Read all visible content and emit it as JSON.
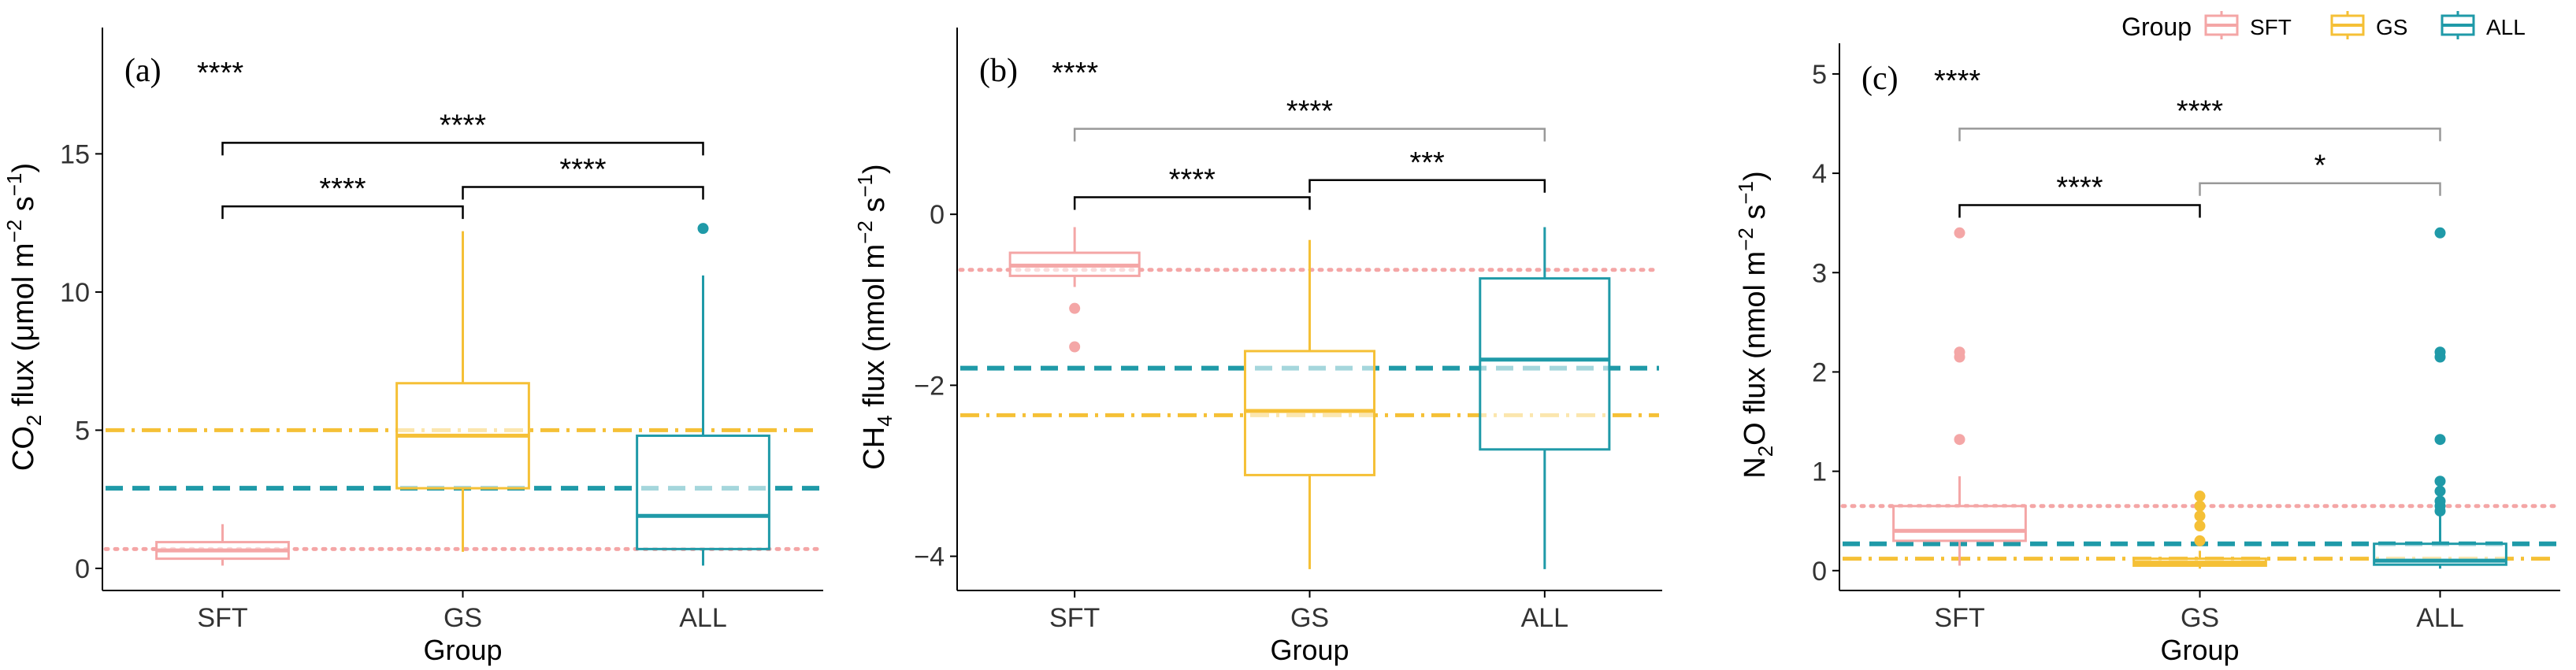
{
  "legend": {
    "title": "Group",
    "items": [
      {
        "label": "SFT",
        "color": "#F4A6A6"
      },
      {
        "label": "GS",
        "color": "#F5C036"
      },
      {
        "label": "ALL",
        "color": "#1F9AA8"
      }
    ]
  },
  "chart_data": [
    {
      "type": "box",
      "panel_label": "(a)",
      "overall_sig": "****",
      "title": "",
      "xlabel": "Group",
      "ylabel_parts": [
        "CO",
        "2",
        " flux (μmol m",
        "−2",
        " s",
        "−1",
        ")"
      ],
      "ylim": [
        -0.8,
        19
      ],
      "yticks": [
        0,
        5,
        10,
        15
      ],
      "categories": [
        "SFT",
        "GS",
        "ALL"
      ],
      "boxes": [
        {
          "group": "SFT",
          "min": 0.1,
          "q1": 0.35,
          "median": 0.65,
          "q3": 0.95,
          "max": 1.6,
          "mean": 0.65,
          "outliers": []
        },
        {
          "group": "GS",
          "min": 0.6,
          "q1": 2.9,
          "median": 4.8,
          "q3": 6.7,
          "max": 12.2,
          "mean": 4.85,
          "outliers": []
        },
        {
          "group": "ALL",
          "min": 0.1,
          "q1": 0.7,
          "median": 1.9,
          "q3": 4.8,
          "max": 10.6,
          "mean": 2.9,
          "outliers": [
            12.3
          ]
        }
      ],
      "reference_lines": [
        {
          "group": "SFT",
          "value": 0.7,
          "style": "dotted"
        },
        {
          "group": "GS",
          "value": 5.0,
          "style": "dashdot"
        },
        {
          "group": "ALL",
          "value": 2.9,
          "style": "dashed"
        }
      ],
      "comparisons": [
        {
          "from": "SFT",
          "to": "GS",
          "label": "****",
          "y": 13.1,
          "color": "#000000"
        },
        {
          "from": "GS",
          "to": "ALL",
          "label": "****",
          "y": 13.8,
          "color": "#000000"
        },
        {
          "from": "SFT",
          "to": "ALL",
          "label": "****",
          "y": 15.4,
          "color": "#000000"
        }
      ]
    },
    {
      "type": "box",
      "panel_label": "(b)",
      "overall_sig": "****",
      "title": "",
      "xlabel": "Group",
      "ylabel_parts": [
        "CH",
        "4",
        " flux (nmol m",
        "−2",
        " s",
        "−1",
        ")"
      ],
      "ylim": [
        -4.4,
        2.0
      ],
      "yticks": [
        -4,
        -2,
        0
      ],
      "categories": [
        "SFT",
        "GS",
        "ALL"
      ],
      "boxes": [
        {
          "group": "SFT",
          "min": -0.85,
          "q1": -0.72,
          "median": -0.6,
          "q3": -0.45,
          "max": -0.15,
          "mean": -0.6,
          "outliers": [
            -1.1,
            -1.55
          ]
        },
        {
          "group": "GS",
          "min": -4.15,
          "q1": -3.05,
          "median": -2.3,
          "q3": -1.6,
          "max": -0.3,
          "mean": -2.35,
          "outliers": []
        },
        {
          "group": "ALL",
          "min": -4.15,
          "q1": -2.75,
          "median": -1.7,
          "q3": -0.75,
          "max": -0.15,
          "mean": -1.8,
          "outliers": []
        }
      ],
      "reference_lines": [
        {
          "group": "SFT",
          "value": -0.65,
          "style": "dotted"
        },
        {
          "group": "GS",
          "value": -2.35,
          "style": "dashdot"
        },
        {
          "group": "ALL",
          "value": -1.8,
          "style": "dashed"
        }
      ],
      "comparisons": [
        {
          "from": "SFT",
          "to": "GS",
          "label": "****",
          "y": 0.2,
          "color": "#000000"
        },
        {
          "from": "GS",
          "to": "ALL",
          "label": "***",
          "y": 0.4,
          "color": "#000000"
        },
        {
          "from": "SFT",
          "to": "ALL",
          "label": "****",
          "y": 1.0,
          "color": "#999999"
        }
      ]
    },
    {
      "type": "box",
      "panel_label": "(c)",
      "overall_sig": "****",
      "title": "",
      "xlabel": "Group",
      "ylabel_parts": [
        "N",
        "2",
        "O flux (nmol m",
        "−2",
        " s",
        "−1",
        ")"
      ],
      "ylim": [
        -0.2,
        5.15
      ],
      "yticks": [
        0,
        1,
        2,
        3,
        4,
        5
      ],
      "categories": [
        "SFT",
        "GS",
        "ALL"
      ],
      "boxes": [
        {
          "group": "SFT",
          "min": 0.05,
          "q1": 0.3,
          "median": 0.4,
          "q3": 0.65,
          "max": 0.95,
          "mean": 0.65,
          "outliers": [
            1.32,
            2.15,
            2.2,
            3.4
          ]
        },
        {
          "group": "GS",
          "min": 0.02,
          "q1": 0.05,
          "median": 0.08,
          "q3": 0.12,
          "max": 0.2,
          "mean": 0.12,
          "outliers": [
            0.3,
            0.45,
            0.55,
            0.65,
            0.75
          ]
        },
        {
          "group": "ALL",
          "min": 0.02,
          "q1": 0.06,
          "median": 0.1,
          "q3": 0.27,
          "max": 0.55,
          "mean": 0.27,
          "outliers": [
            0.6,
            0.65,
            0.7,
            0.8,
            0.9,
            1.32,
            2.15,
            2.2,
            3.4
          ]
        }
      ],
      "reference_lines": [
        {
          "group": "SFT",
          "value": 0.65,
          "style": "dotted"
        },
        {
          "group": "GS",
          "value": 0.12,
          "style": "dashdot"
        },
        {
          "group": "ALL",
          "value": 0.27,
          "style": "dashed"
        }
      ],
      "comparisons": [
        {
          "from": "SFT",
          "to": "GS",
          "label": "****",
          "y": 3.68,
          "color": "#000000"
        },
        {
          "from": "GS",
          "to": "ALL",
          "label": "*",
          "y": 3.9,
          "color": "#999999"
        },
        {
          "from": "SFT",
          "to": "ALL",
          "label": "****",
          "y": 4.45,
          "color": "#999999"
        }
      ]
    }
  ]
}
